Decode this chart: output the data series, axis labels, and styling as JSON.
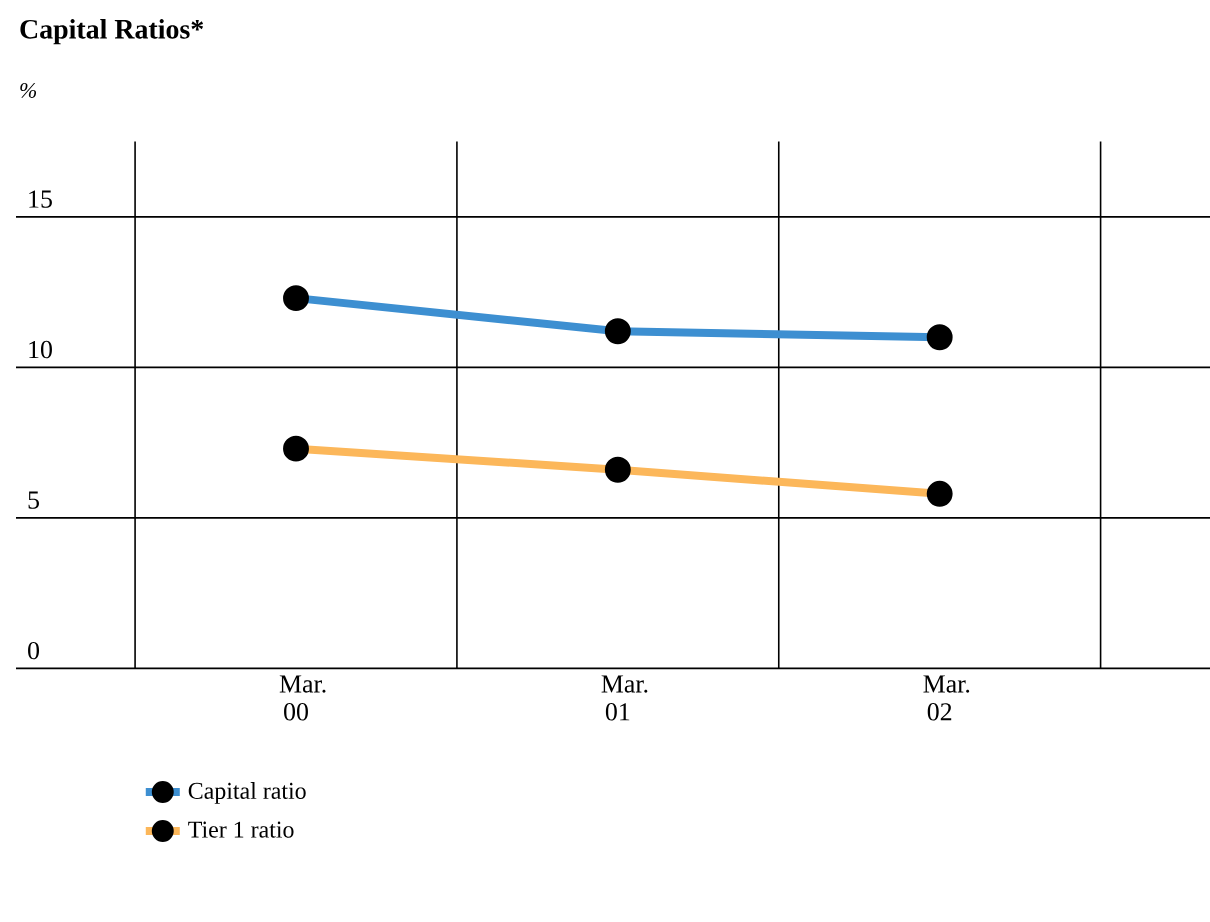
{
  "chart_data": {
    "type": "line",
    "title": "Capital Ratios*",
    "ylabel": "%",
    "categories": [
      "Mar. 00",
      "Mar. 01",
      "Mar. 02"
    ],
    "series": [
      {
        "name": "Capital ratio",
        "color": "#3d8fd1",
        "values": [
          12.3,
          11.2,
          11.0
        ]
      },
      {
        "name": "Tier 1 ratio",
        "color": "#fcb75a",
        "values": [
          7.3,
          6.6,
          5.8
        ]
      }
    ],
    "ylim": [
      0,
      17.5
    ],
    "yticks": [
      0,
      5,
      10,
      15
    ],
    "grid": true,
    "legend": "bottom left",
    "marker": "circle",
    "line_style": "solid"
  }
}
